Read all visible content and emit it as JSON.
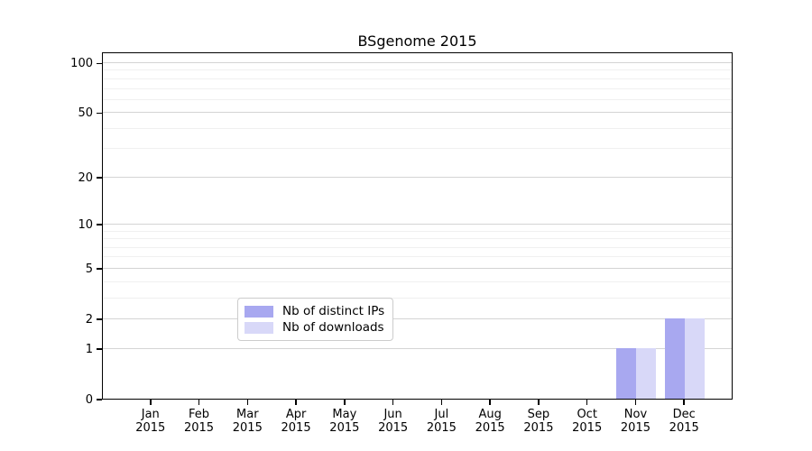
{
  "chart_data": {
    "type": "bar",
    "title": "BSgenome 2015",
    "categories": [
      "Jan",
      "Feb",
      "Mar",
      "Apr",
      "May",
      "Jun",
      "Jul",
      "Aug",
      "Sep",
      "Oct",
      "Nov",
      "Dec"
    ],
    "category_year": "2015",
    "series": [
      {
        "name": "Nb of distinct IPs",
        "color": "#a8a8f0",
        "values": [
          0,
          0,
          0,
          0,
          0,
          0,
          0,
          0,
          0,
          0,
          1,
          2
        ]
      },
      {
        "name": "Nb of downloads",
        "color": "#d8d8f8",
        "values": [
          0,
          0,
          0,
          0,
          0,
          0,
          0,
          0,
          0,
          0,
          1,
          2
        ]
      }
    ],
    "y_scale": "log1p",
    "y_axis_ticks": [
      0,
      1,
      2,
      5,
      10,
      20,
      50,
      100
    ],
    "y_minor_gridlines": [
      3,
      4,
      6,
      7,
      8,
      9,
      30,
      40,
      60,
      70,
      80,
      90
    ],
    "y_axis_max": 117,
    "ylim": [
      0,
      117
    ],
    "xlabel": "",
    "ylabel": "",
    "grid": true,
    "legend_position": "lower center inside"
  },
  "colors": {
    "background": "#ffffff",
    "spine": "#000000",
    "major_grid": "#d4d4d4",
    "minor_grid": "#f0f0f0",
    "bar_distinct_ips": "#a8a8f0",
    "bar_downloads": "#d8d8f8"
  }
}
